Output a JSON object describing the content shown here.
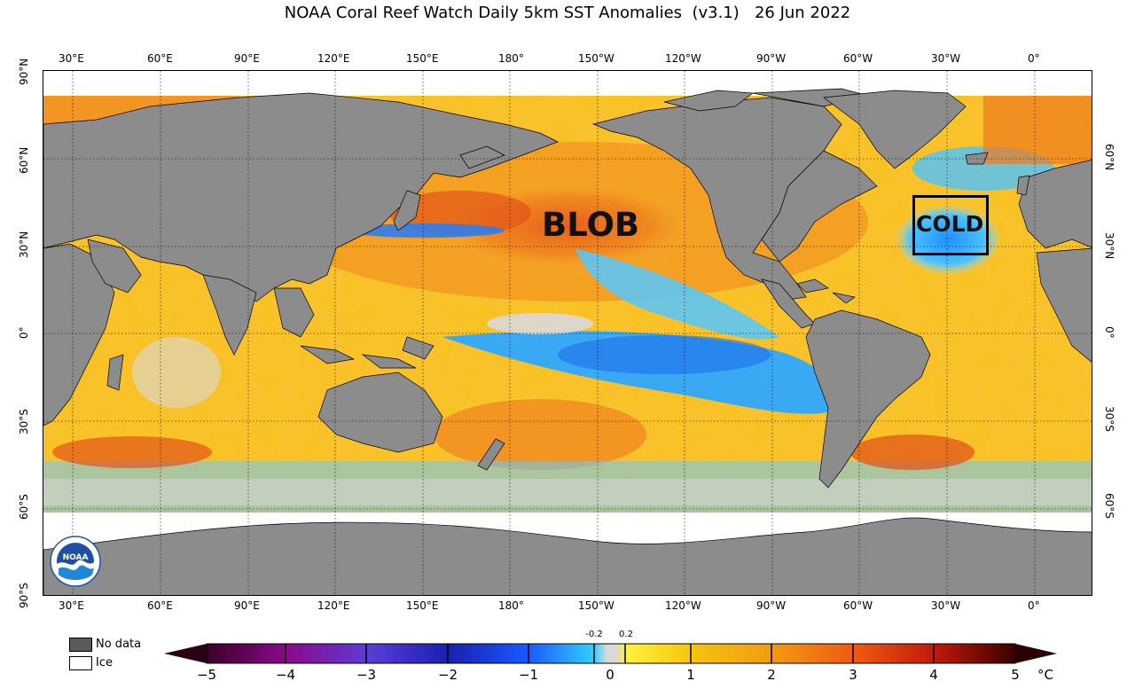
{
  "title": "NOAA Coral Reef Watch Daily 5km SST Anomalies  (v3.1)   26 Jun 2022",
  "lon_labels": [
    "30°E",
    "60°E",
    "90°E",
    "120°E",
    "150°E",
    "180°",
    "150°W",
    "120°W",
    "90°W",
    "60°W",
    "30°W",
    "0°"
  ],
  "lat_labels_left": [
    "90°N",
    "60°N",
    "30°N",
    "0°",
    "30°S",
    "60°S",
    "90°S"
  ],
  "lat_labels_right": [
    "60°N",
    "30°N",
    "0°",
    "30°S",
    "60°S"
  ],
  "annotations": {
    "blob": "BLOB",
    "cold": "COLD"
  },
  "legend": {
    "nodata": "No data",
    "ice": "Ice"
  },
  "colorbar": {
    "ticks": [
      "−5",
      "−4",
      "−3",
      "−2",
      "−1",
      "0",
      "1",
      "2",
      "3",
      "4",
      "5"
    ],
    "small_ticks": [
      "-0.2",
      "0.2"
    ],
    "unit": "°C",
    "range": [
      -5,
      5
    ]
  },
  "colors": {
    "land": "#8c8c8c",
    "ice": "#ffffff",
    "warm": "#f5a623",
    "cold": "#29a3ff",
    "neutral": "#d9d9d9"
  },
  "logo": "NOAA"
}
